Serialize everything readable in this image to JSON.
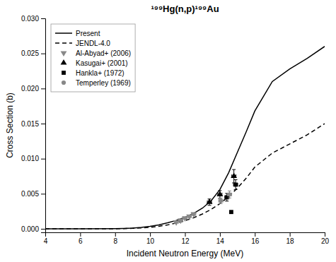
{
  "chart_data": {
    "type": "line",
    "title": "¹⁹⁹Hg(n,p)¹⁹⁹Au",
    "xlabel": "Incident Neutron Energy (MeV)",
    "ylabel": "Cross Section (b)",
    "xlim": [
      4,
      20
    ],
    "ylim": [
      -0.0005,
      0.03
    ],
    "xticks": [
      4,
      6,
      8,
      10,
      12,
      14,
      16,
      18,
      20
    ],
    "yticks": [
      {
        "value": 0.0,
        "label": "0.000"
      },
      0.005,
      {
        "value": 0.01,
        "label": "0.010"
      },
      0.015,
      {
        "value": 0.02,
        "label": "0.020"
      },
      0.025,
      {
        "value": 0.03,
        "label": "0.030"
      }
    ],
    "grid": false,
    "legend": "upper left",
    "series": [
      {
        "name": "Present",
        "type": "line",
        "color": "#000000",
        "line_style": "solid",
        "x": [
          4.0,
          6.0,
          8.0,
          8.5,
          9.0,
          9.5,
          10.0,
          10.5,
          11.0,
          11.5,
          12.0,
          12.5,
          13.0,
          13.5,
          14.0,
          14.5,
          15.0,
          15.5,
          16.0,
          17.0,
          18.0,
          19.0,
          20.0
        ],
        "values": [
          0.0,
          0.0,
          2e-05,
          5e-05,
          0.0001,
          0.0002,
          0.00035,
          0.00055,
          0.00085,
          0.0012,
          0.00165,
          0.0022,
          0.00295,
          0.004,
          0.0056,
          0.008,
          0.0109,
          0.0138,
          0.0168,
          0.021,
          0.0228,
          0.0243,
          0.026
        ]
      },
      {
        "name": "JENDL-4.0",
        "type": "line",
        "color": "#000000",
        "line_style": "dashed",
        "x": [
          4.0,
          6.0,
          8.0,
          8.5,
          9.0,
          9.5,
          10.0,
          10.5,
          11.0,
          11.5,
          12.0,
          12.5,
          13.0,
          13.5,
          14.0,
          14.5,
          15.0,
          15.5,
          16.0,
          17.0,
          18.0,
          19.0,
          20.0
        ],
        "values": [
          0.0,
          0.0,
          1e-05,
          3e-05,
          7e-05,
          0.00013,
          0.00022,
          0.00036,
          0.00056,
          0.00082,
          0.00116,
          0.00158,
          0.00212,
          0.00278,
          0.0036,
          0.0046,
          0.0058,
          0.0072,
          0.0088,
          0.0108,
          0.0121,
          0.0134,
          0.015
        ]
      },
      {
        "name": "Al-Abyad+ (2006)",
        "type": "scatter",
        "color": "#888888",
        "marker": "triangle-down",
        "x": [
          11.5,
          11.75,
          12.0,
          12.25,
          12.5
        ],
        "values": [
          0.00095,
          0.0012,
          0.00152,
          0.00178,
          0.0021
        ],
        "x_errors": [
          0.12,
          0.12,
          0.12,
          0.12,
          0.12
        ],
        "errors": [
          0.0001,
          0.00012,
          0.00015,
          0.00015,
          0.00018
        ]
      },
      {
        "name": "Kasugai+ (2001)",
        "type": "scatter",
        "color": "#000000",
        "marker": "triangle-up",
        "x": [
          13.4,
          14.0,
          14.8
        ],
        "values": [
          0.0038,
          0.0049,
          0.0075
        ],
        "x_errors": [
          0.12,
          0.12,
          0.12
        ],
        "errors": [
          0.00045,
          0.00055,
          0.00095
        ]
      },
      {
        "name": "Hankla+ (1972)",
        "type": "scatter",
        "color": "#000000",
        "marker": "square",
        "x": [
          14.4,
          14.9,
          14.65
        ],
        "values": [
          0.0045,
          0.0063,
          0.0024
        ],
        "x_errors": [
          0.12,
          0.12,
          null
        ],
        "errors": [
          0.00055,
          0.0007,
          null
        ]
      },
      {
        "name": "Temperley (1969)",
        "type": "scatter",
        "color": "#888888",
        "marker": "circle",
        "x": [
          14.05,
          14.55
        ],
        "values": [
          0.004,
          0.0049
        ],
        "x_errors": [
          0.12,
          0.12
        ],
        "errors": [
          0.0004,
          0.0005
        ]
      }
    ]
  }
}
